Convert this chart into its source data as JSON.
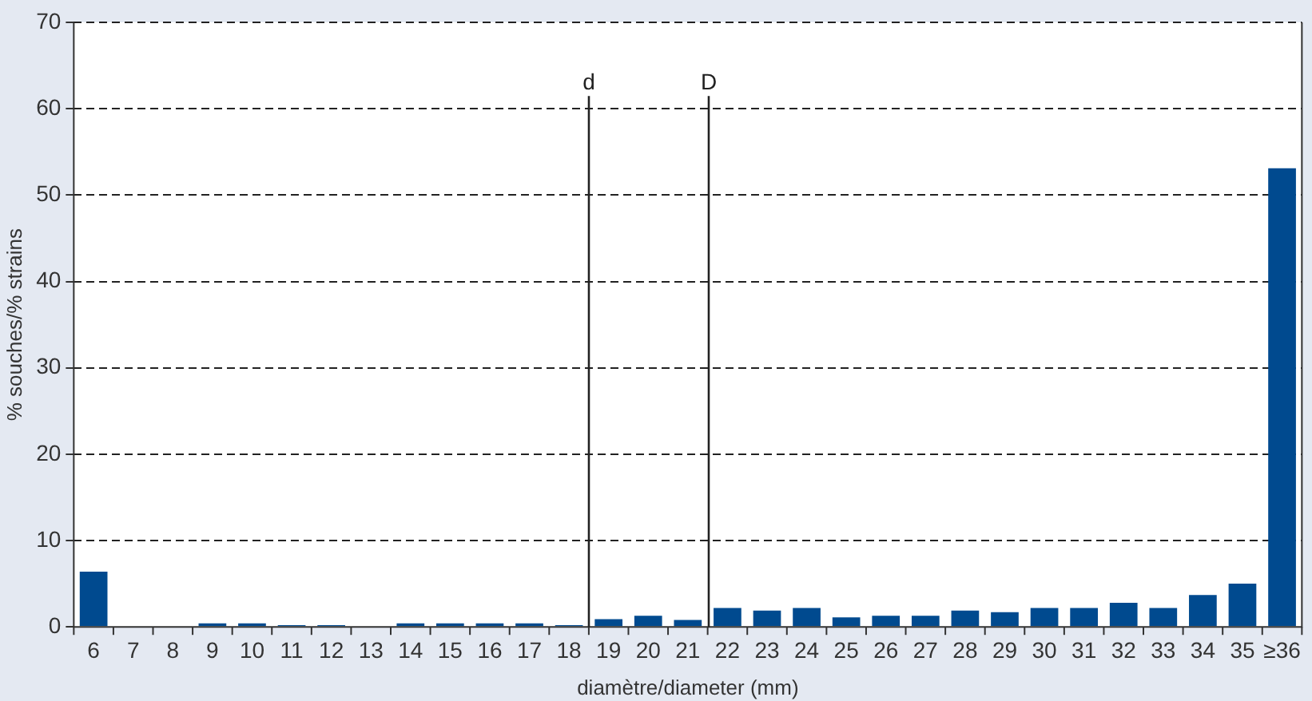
{
  "chart_data": {
    "type": "bar",
    "xlabel": "diamètre/diameter (mm)",
    "ylabel": "% souches/% strains",
    "categories": [
      "6",
      "7",
      "8",
      "9",
      "10",
      "11",
      "12",
      "13",
      "14",
      "15",
      "16",
      "17",
      "18",
      "19",
      "20",
      "21",
      "22",
      "23",
      "24",
      "25",
      "26",
      "27",
      "28",
      "29",
      "30",
      "31",
      "32",
      "33",
      "34",
      "35",
      "≥36"
    ],
    "values": [
      6.4,
      0,
      0,
      0.4,
      0.4,
      0.2,
      0.2,
      0,
      0.4,
      0.4,
      0.4,
      0.4,
      0.2,
      0.9,
      1.3,
      0.8,
      2.2,
      1.9,
      2.2,
      1.1,
      1.3,
      1.3,
      1.9,
      1.7,
      2.2,
      2.2,
      2.8,
      2.2,
      3.7,
      5.0,
      53.1
    ],
    "color": "#004a8f",
    "ylim": [
      0,
      70
    ],
    "yticks": [
      0,
      10,
      20,
      30,
      40,
      50,
      60,
      70
    ],
    "grid": "y",
    "annotations": [
      "d",
      "D"
    ]
  }
}
